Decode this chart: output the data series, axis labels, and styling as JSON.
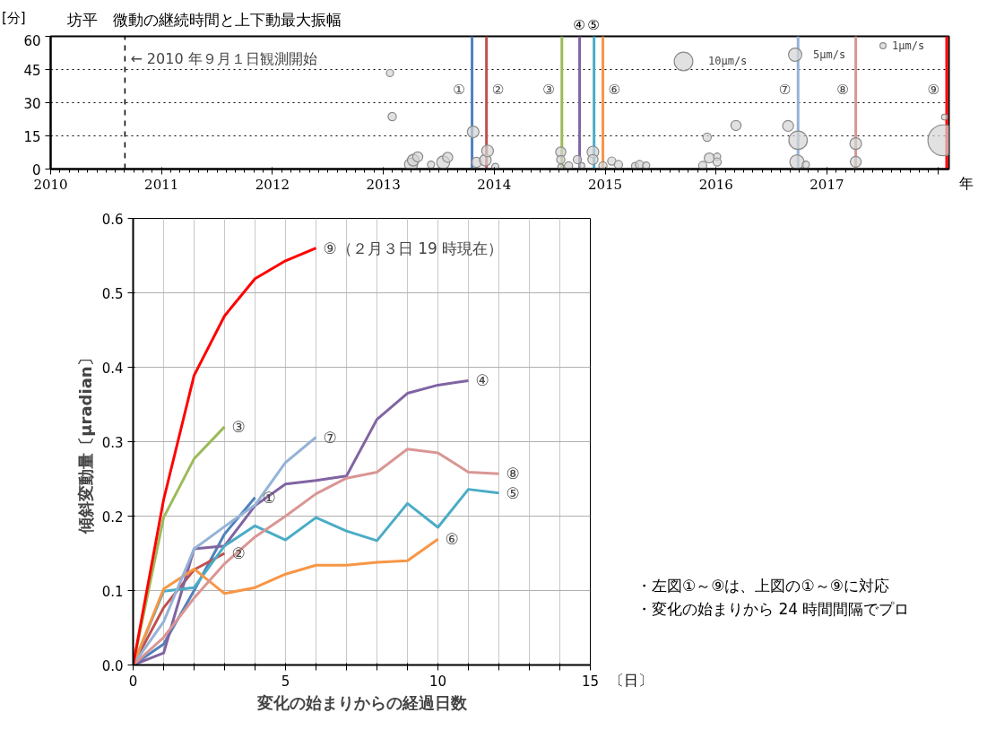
{
  "chart_data": [
    {
      "type": "bubble",
      "title": "坊平　微動の継続時間と上下動最大振幅",
      "xlabel": "年",
      "ylabel": "[分]",
      "x": [
        2013.06,
        2013.08,
        2013.25,
        2013.27,
        2013.31,
        2013.43,
        2013.54,
        2013.58,
        2013.81,
        2013.84,
        2013.92,
        2013.94,
        2014.01,
        2014.6,
        2014.6,
        2014.6,
        2014.67,
        2014.75,
        2014.79,
        2014.89,
        2014.89,
        2014.98,
        2015.06,
        2015.12,
        2015.27,
        2015.31,
        2015.37,
        2015.88,
        2015.92,
        2015.94,
        2016.01,
        2016.01,
        2016.18,
        2016.65,
        2016.73,
        2016.74,
        2016.81,
        2017.26,
        2017.26,
        2018.05,
        2018.06
      ],
      "values": [
        43.4,
        23.7,
        2,
        4,
        5.5,
        2,
        3,
        5.3,
        16.8,
        3,
        4,
        8.2,
        1,
        7.7,
        4.3,
        1,
        1.4,
        4.3,
        1.6,
        7.7,
        4.3,
        1.4,
        3.6,
        2,
        1.4,
        2,
        1.6,
        1.6,
        14.4,
        5,
        5.6,
        3.2,
        19.7,
        19.5,
        3.2,
        13,
        2,
        11.5,
        3.3,
        13,
        23.5
      ],
      "sizes": [
        1.5,
        2,
        5,
        4,
        3,
        1.5,
        5,
        3,
        4,
        3,
        4,
        4,
        1.5,
        3,
        2,
        1,
        2,
        2,
        1,
        4,
        3,
        2,
        2,
        2,
        1.5,
        2,
        1.5,
        2,
        2,
        3,
        1.5,
        2,
        3,
        3.5,
        6,
        10,
        1.5,
        4,
        3.5,
        28,
        1
      ],
      "size_legend": [
        {
          "value": 10,
          "label": "10μm/s"
        },
        {
          "value": 5,
          "label": "5μm/s"
        },
        {
          "value": 1,
          "label": "1μm/s"
        }
      ],
      "xlim": [
        2010,
        2018.1
      ],
      "ylim": [
        0,
        60
      ],
      "xticks": [
        2010,
        2011,
        2012,
        2013,
        2014,
        2015,
        2016,
        2017,
        {
          "value": 2018,
          "label": null
        }
      ],
      "yticks": [
        0,
        15,
        30,
        45,
        60
      ],
      "grid": "y",
      "legend": "top right",
      "ref_lines": [
        {
          "axis": "x",
          "value": 2010.67,
          "label": "← 2010 年９月１日観測開始",
          "color": "#000000",
          "line_style": "dashed"
        },
        {
          "axis": "x",
          "value": 2013.8,
          "label": "①",
          "color": "#4f81bd"
        },
        {
          "axis": "x",
          "value": 2013.93,
          "label": "②",
          "color": "#c0504d"
        },
        {
          "axis": "x",
          "value": 2014.61,
          "label": "③",
          "color": "#9bbb59"
        },
        {
          "axis": "x",
          "value": 2014.77,
          "label": "④",
          "color": "#8064a2"
        },
        {
          "axis": "x",
          "value": 2014.9,
          "label": "⑤",
          "color": "#4bacc6"
        },
        {
          "axis": "x",
          "value": 2014.98,
          "label": "⑥",
          "color": "#f79646"
        },
        {
          "axis": "x",
          "value": 2016.74,
          "label": "⑦",
          "color": "#95b3d7"
        },
        {
          "axis": "x",
          "value": 2017.26,
          "label": "⑧",
          "color": "#d99694"
        },
        {
          "axis": "x",
          "value": 2018.08,
          "label": "⑨",
          "color": "#ff0000"
        }
      ]
    },
    {
      "type": "line",
      "xlabel": "変化の始まりからの経過日数",
      "ylabel": "傾斜変動量〔μradian〕",
      "x": [
        0,
        1,
        2,
        3,
        4,
        5,
        6,
        7,
        8,
        9,
        10,
        11,
        12
      ],
      "series": [
        {
          "name": "①",
          "color": "#4f81bd",
          "values": [
            0,
            0.028,
            0.1,
            0.176,
            0.225,
            null,
            null,
            null,
            null,
            null,
            null,
            null,
            null
          ]
        },
        {
          "name": "②",
          "color": "#c0504d",
          "values": [
            0,
            0.077,
            0.128,
            0.15,
            null,
            null,
            null,
            null,
            null,
            null,
            null,
            null,
            null
          ]
        },
        {
          "name": "③",
          "color": "#9bbb59",
          "values": [
            0,
            0.198,
            0.277,
            0.32,
            null,
            null,
            null,
            null,
            null,
            null,
            null,
            null,
            null
          ]
        },
        {
          "name": "④",
          "color": "#8064a2",
          "values": [
            0,
            0.016,
            0.156,
            0.16,
            0.214,
            0.243,
            0.248,
            0.254,
            0.33,
            0.365,
            0.376,
            0.382,
            null
          ]
        },
        {
          "name": "⑤",
          "color": "#4bacc6",
          "values": [
            0,
            0.099,
            0.104,
            0.16,
            0.187,
            0.168,
            0.198,
            0.18,
            0.167,
            0.217,
            0.185,
            0.236,
            0.231
          ]
        },
        {
          "name": "⑥",
          "color": "#f79646",
          "values": [
            0,
            0.102,
            0.129,
            0.096,
            0.104,
            0.122,
            0.134,
            0.134,
            0.138,
            0.14,
            0.169,
            null,
            null
          ]
        },
        {
          "name": "⑦",
          "color": "#95b3d7",
          "values": [
            0,
            0.058,
            0.156,
            0.186,
            0.215,
            0.272,
            0.306,
            null,
            null,
            null,
            null,
            null,
            null
          ]
        },
        {
          "name": "⑧",
          "color": "#d99694",
          "values": [
            0,
            0.037,
            0.09,
            0.136,
            0.172,
            0.2,
            0.23,
            0.251,
            0.259,
            0.29,
            0.285,
            0.259,
            0.257
          ]
        },
        {
          "name": "⑨（２月３日 19 時現在）",
          "color": "#ff0000",
          "values": [
            0,
            0.222,
            0.389,
            0.469,
            0.519,
            0.543,
            0.56,
            null,
            null,
            null,
            null,
            null,
            null
          ]
        }
      ],
      "xlim": [
        0,
        15
      ],
      "ylim": [
        0,
        0.6
      ],
      "xticks": [
        0,
        {
          "value": 1,
          "label": null
        },
        {
          "value": 2,
          "label": null
        },
        {
          "value": 3,
          "label": null
        },
        {
          "value": 4,
          "label": null
        },
        5,
        {
          "value": 6,
          "label": null
        },
        {
          "value": 7,
          "label": null
        },
        {
          "value": 8,
          "label": null
        },
        {
          "value": 9,
          "label": null
        },
        10,
        {
          "value": 11,
          "label": null
        },
        {
          "value": 12,
          "label": null
        },
        {
          "value": 13,
          "label": null
        },
        {
          "value": 14,
          "label": null
        },
        15
      ],
      "yticks": [
        {
          "value": 0,
          "label": "0.0"
        },
        0.1,
        0.2,
        0.3,
        0.4,
        0.5,
        0.6
      ],
      "grid": true,
      "legend": false,
      "marker": "none",
      "line_style": "solid",
      "annotations": [
        "〔日〕",
        "・左図①～⑨は、上図の①～⑨に対応",
        "・変化の始まりから 24 時間間隔でプロ"
      ]
    }
  ]
}
